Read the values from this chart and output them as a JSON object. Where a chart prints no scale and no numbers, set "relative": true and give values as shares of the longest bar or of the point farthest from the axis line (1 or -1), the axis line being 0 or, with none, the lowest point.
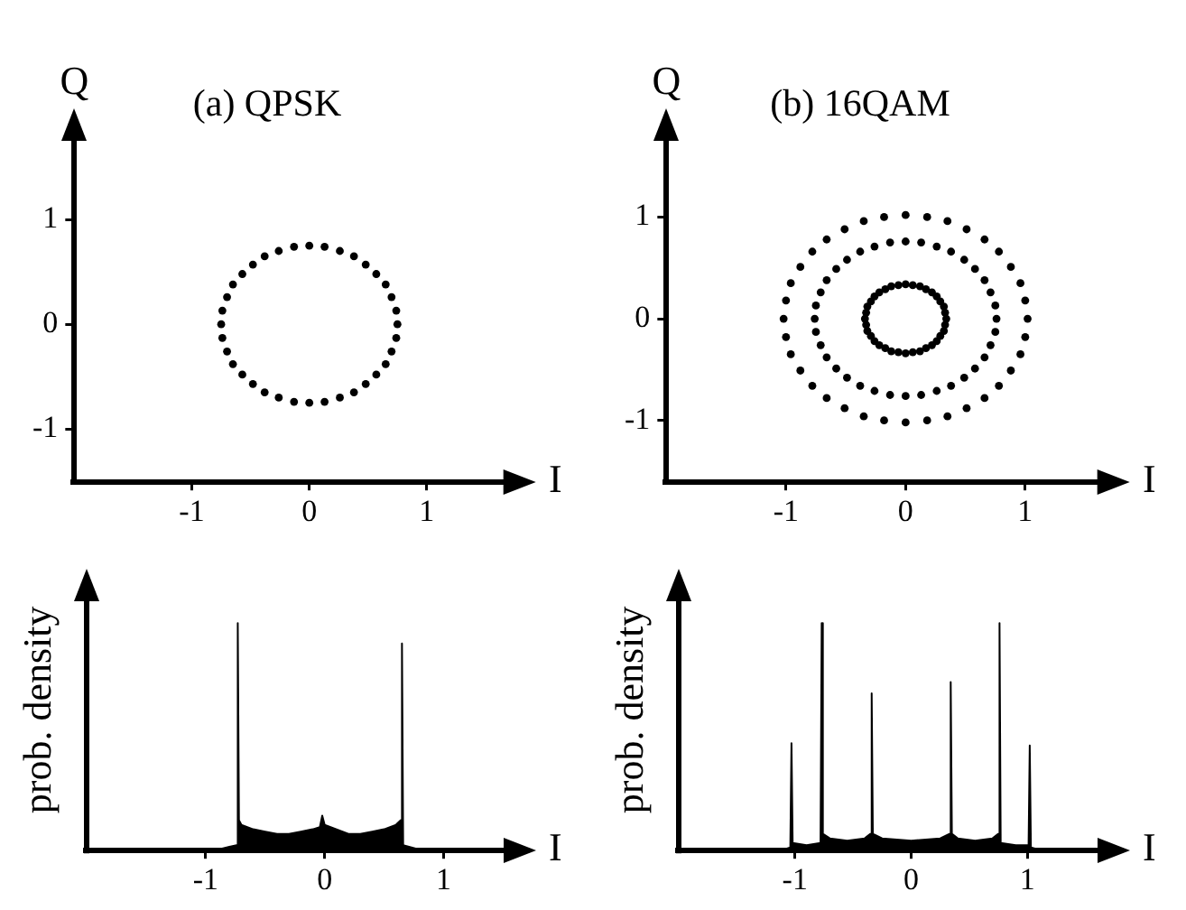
{
  "chart_data": [
    {
      "type": "scatter",
      "title": "(a) QPSK",
      "xlabel": "I",
      "ylabel": "Q",
      "xlim": [
        -2,
        1.7
      ],
      "ylim": [
        -1.5,
        1.8
      ],
      "xticks": [
        -1,
        0,
        1
      ],
      "yticks": [
        -1,
        0,
        1
      ],
      "marker": "circle",
      "series": [
        {
          "color": "#000000",
          "x": [
            0.75,
            0.74,
            0.7,
            0.65,
            0.57,
            0.48,
            0.38,
            0.26,
            0.13,
            0,
            -0.13,
            -0.26,
            -0.38,
            -0.48,
            -0.57,
            -0.65,
            -0.7,
            -0.74,
            -0.75,
            -0.74,
            -0.7,
            -0.65,
            -0.57,
            -0.48,
            -0.38,
            -0.26,
            -0.13,
            0,
            0.13,
            0.26,
            0.38,
            0.48,
            0.57,
            0.65,
            0.7,
            0.74
          ],
          "values": [
            0,
            0.13,
            0.26,
            0.38,
            0.48,
            0.57,
            0.65,
            0.7,
            0.74,
            0.75,
            0.74,
            0.7,
            0.65,
            0.57,
            0.48,
            0.38,
            0.26,
            0.13,
            0,
            -0.13,
            -0.26,
            -0.38,
            -0.48,
            -0.57,
            -0.65,
            -0.7,
            -0.74,
            -0.75,
            -0.74,
            -0.7,
            -0.65,
            -0.57,
            -0.48,
            -0.38,
            -0.26,
            -0.13
          ]
        }
      ]
    },
    {
      "type": "scatter",
      "title": "(b) 16QAM",
      "xlabel": "I",
      "ylabel": "Q",
      "xlim": [
        -2,
        1.65
      ],
      "ylim": [
        -1.6,
        1.8
      ],
      "xticks": [
        -1,
        0,
        1
      ],
      "yticks": [
        -1,
        0,
        1
      ],
      "marker": "circle",
      "series": [
        {
          "color": "#000000",
          "x": [
            0.34,
            0.33,
            0.32,
            0.29,
            0.26,
            0.22,
            0.17,
            0.12,
            0.06,
            0,
            -0.06,
            -0.12,
            -0.17,
            -0.22,
            -0.26,
            -0.29,
            -0.32,
            -0.33,
            -0.34,
            -0.33,
            -0.32,
            -0.29,
            -0.26,
            -0.22,
            -0.17,
            -0.12,
            -0.06,
            0,
            0.06,
            0.12,
            0.17,
            0.22,
            0.26,
            0.29,
            0.32,
            0.33
          ],
          "values": [
            0,
            0.06,
            0.12,
            0.17,
            0.22,
            0.26,
            0.29,
            0.32,
            0.33,
            0.34,
            0.33,
            0.32,
            0.29,
            0.26,
            0.22,
            0.17,
            0.12,
            0.06,
            0,
            -0.06,
            -0.12,
            -0.17,
            -0.22,
            -0.26,
            -0.29,
            -0.32,
            -0.33,
            -0.34,
            -0.33,
            -0.32,
            -0.29,
            -0.26,
            -0.22,
            -0.17,
            -0.12,
            -0.06
          ]
        },
        {
          "color": "#000000",
          "x": [
            0.76,
            0.75,
            0.71,
            0.66,
            0.58,
            0.49,
            0.38,
            0.26,
            0.13,
            0,
            -0.13,
            -0.26,
            -0.38,
            -0.49,
            -0.58,
            -0.66,
            -0.71,
            -0.75,
            -0.76,
            -0.75,
            -0.71,
            -0.66,
            -0.58,
            -0.49,
            -0.38,
            -0.26,
            -0.13,
            0,
            0.13,
            0.26,
            0.38,
            0.49,
            0.58,
            0.66,
            0.71,
            0.75
          ],
          "values": [
            0,
            0.13,
            0.26,
            0.38,
            0.49,
            0.58,
            0.66,
            0.71,
            0.75,
            0.76,
            0.75,
            0.71,
            0.66,
            0.58,
            0.49,
            0.38,
            0.26,
            0.13,
            0,
            -0.13,
            -0.26,
            -0.38,
            -0.49,
            -0.58,
            -0.66,
            -0.71,
            -0.75,
            -0.76,
            -0.75,
            -0.71,
            -0.66,
            -0.58,
            -0.49,
            -0.38,
            -0.26,
            -0.13
          ]
        },
        {
          "color": "#000000",
          "x": [
            1.02,
            1,
            0.96,
            0.88,
            0.78,
            0.66,
            0.51,
            0.35,
            0.18,
            0,
            -0.18,
            -0.35,
            -0.51,
            -0.66,
            -0.78,
            -0.88,
            -0.96,
            -1,
            -1.02,
            -1,
            -0.96,
            -0.88,
            -0.78,
            -0.66,
            -0.51,
            -0.35,
            -0.18,
            0,
            0.18,
            0.35,
            0.51,
            0.66,
            0.78,
            0.88,
            0.96,
            1
          ],
          "values": [
            0,
            0.18,
            0.35,
            0.51,
            0.66,
            0.78,
            0.88,
            0.96,
            1,
            1.02,
            1,
            0.96,
            0.88,
            0.78,
            0.66,
            0.51,
            0.35,
            0.18,
            0,
            -0.18,
            -0.35,
            -0.51,
            -0.66,
            -0.78,
            -0.88,
            -0.96,
            -1,
            -1.02,
            -1,
            -0.96,
            -0.88,
            -0.78,
            -0.66,
            -0.51,
            -0.35,
            -0.18
          ]
        }
      ]
    },
    {
      "type": "area",
      "xlabel": "I",
      "ylabel": "prob. density",
      "relative": true,
      "xlim": [
        -2,
        1.55
      ],
      "xticks": [
        -1,
        0,
        1
      ],
      "color": "#000000",
      "x": [
        -0.9,
        -0.74,
        -0.73,
        -0.72,
        -0.7,
        -0.6,
        -0.5,
        -0.4,
        -0.3,
        -0.2,
        -0.1,
        -0.04,
        -0.02,
        0,
        0.1,
        0.2,
        0.3,
        0.4,
        0.5,
        0.6,
        0.64,
        0.65,
        0.66,
        0.8
      ],
      "values": [
        0,
        0.02,
        1,
        0.13,
        0.11,
        0.09,
        0.08,
        0.07,
        0.07,
        0.08,
        0.09,
        0.1,
        0.15,
        0.11,
        0.09,
        0.07,
        0.07,
        0.08,
        0.09,
        0.11,
        0.13,
        0.91,
        0.02,
        0
      ]
    },
    {
      "type": "area",
      "xlabel": "I",
      "ylabel": "prob. density",
      "relative": true,
      "xlim": [
        -2,
        1.65
      ],
      "xticks": [
        -1,
        0,
        1
      ],
      "color": "#000000",
      "x": [
        -1.1,
        -1.04,
        -1.03,
        -1.02,
        -0.9,
        -0.78,
        -0.77,
        -0.76,
        -0.7,
        -0.55,
        -0.4,
        -0.35,
        -0.34,
        -0.33,
        -0.25,
        0,
        0.25,
        0.33,
        0.34,
        0.35,
        0.4,
        0.55,
        0.7,
        0.75,
        0.76,
        0.77,
        0.9,
        1.01,
        1.02,
        1.03,
        1.1
      ],
      "values": [
        0,
        0.01,
        0.47,
        0.03,
        0.02,
        0.03,
        1,
        0.07,
        0.05,
        0.04,
        0.05,
        0.07,
        0.69,
        0.07,
        0.05,
        0.04,
        0.05,
        0.07,
        0.74,
        0.07,
        0.05,
        0.04,
        0.05,
        0.07,
        1,
        0.03,
        0.02,
        0.02,
        0.46,
        0.01,
        0
      ]
    }
  ]
}
